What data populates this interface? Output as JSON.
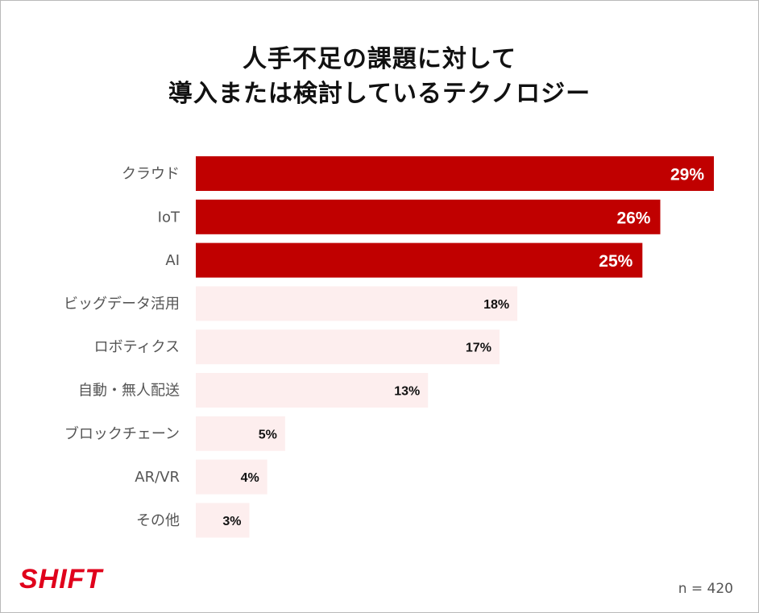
{
  "title_lines": [
    "人手不足の課題に対して",
    "導入または検討しているテクノロジー"
  ],
  "footer": {
    "brand": "SHIFT",
    "sample_size": "n = 420"
  },
  "colors": {
    "highlight_bar": "#c00000",
    "soft_bar": "#fdeeee",
    "brand": "#e0001b"
  },
  "chart_data": {
    "type": "bar",
    "orientation": "horizontal",
    "categories": [
      "クラウド",
      "IoT",
      "AI",
      "ビッグデータ活用",
      "ロボティクス",
      "自動・無人配送",
      "ブロックチェーン",
      "AR/VR",
      "その他"
    ],
    "values": [
      29,
      26,
      25,
      18,
      17,
      13,
      5,
      4,
      3
    ],
    "value_labels": [
      "29%",
      "26%",
      "25%",
      "18%",
      "17%",
      "13%",
      "5%",
      "4%",
      "3%"
    ],
    "highlighted": [
      true,
      true,
      true,
      false,
      false,
      false,
      false,
      false,
      false
    ],
    "xlim": [
      0,
      29
    ],
    "grid": false,
    "legend": "none"
  }
}
